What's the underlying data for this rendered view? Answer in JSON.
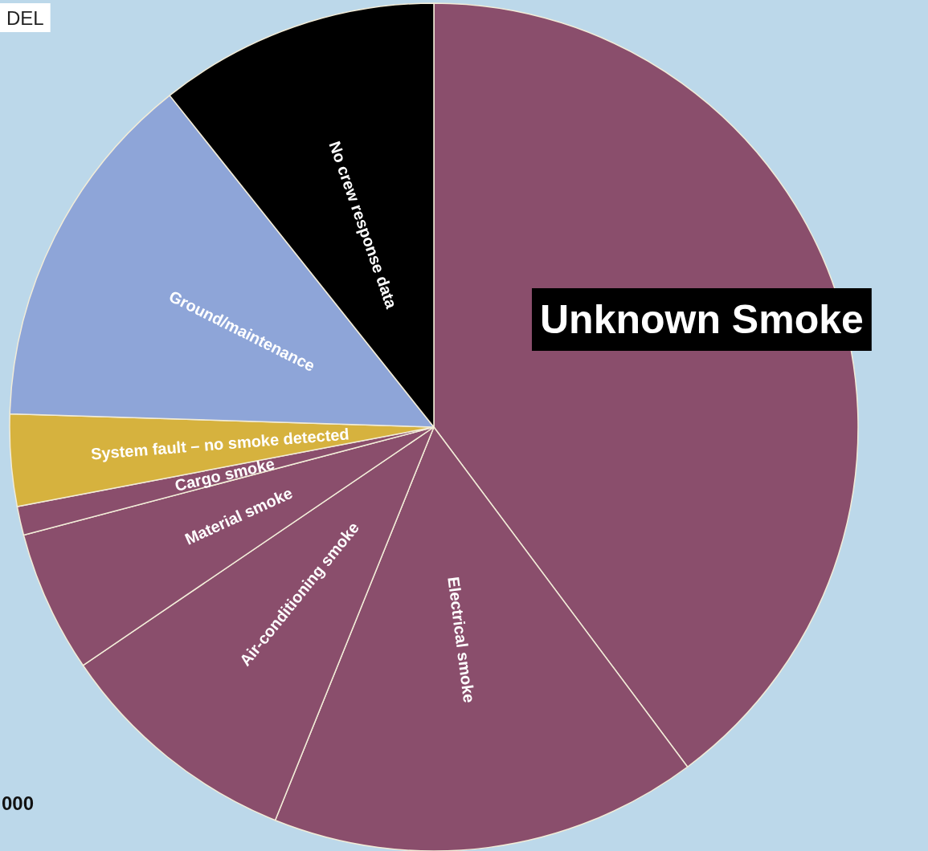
{
  "chart_data": {
    "type": "pie",
    "categories": [
      "Unknown Smoke",
      "Electrical smoke",
      "Air-conditioning smoke",
      "Material smoke",
      "Cargo smoke",
      "System fault – no smoke detected",
      "Ground/maintenance",
      "No crew response data"
    ],
    "values": [
      39.8,
      16.3,
      9.4,
      5.4,
      1.1,
      3.5,
      13.8,
      10.7
    ],
    "colors": [
      "#8a4e6c",
      "#8a4e6c",
      "#8a4e6c",
      "#8a4e6c",
      "#8a4e6c",
      "#d6b23e",
      "#8ea5d8",
      "#000000"
    ],
    "annotations": [
      "DEL",
      "000"
    ],
    "legend": false
  }
}
